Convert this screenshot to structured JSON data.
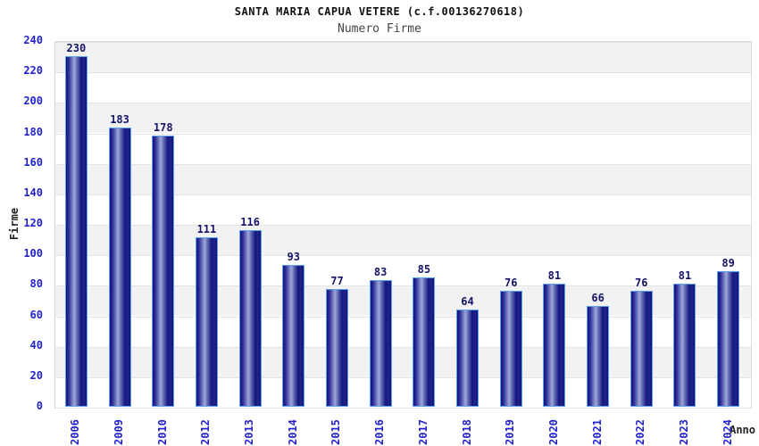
{
  "chart_data": {
    "type": "bar",
    "title": "SANTA MARIA CAPUA VETERE (c.f.00136270618)",
    "subtitle": "Numero Firme",
    "xlabel": "Anno",
    "ylabel": "Firme",
    "categories": [
      "2006",
      "2009",
      "2010",
      "2012",
      "2013",
      "2014",
      "2015",
      "2016",
      "2017",
      "2018",
      "2019",
      "2020",
      "2021",
      "2022",
      "2023",
      "2024"
    ],
    "values": [
      230,
      183,
      178,
      111,
      116,
      93,
      77,
      83,
      85,
      64,
      76,
      81,
      66,
      76,
      81,
      89
    ],
    "ylim": [
      0,
      240
    ],
    "ytick_step": 20,
    "yticks": [
      0,
      20,
      40,
      60,
      80,
      100,
      120,
      140,
      160,
      180,
      200,
      220,
      240
    ],
    "grid": true,
    "legend": "none",
    "colors": {
      "bar_dark": "#14147d",
      "bar_mid": "#2b2b99",
      "bar_light": "#9fa7d8",
      "bar_border": "#5ba3e8",
      "tick_label": "#2222cc",
      "value_label": "#14146a",
      "band": "#f2f2f2",
      "gridline": "#e3e3e3",
      "axis": "#b5b5b5",
      "title": "#111111",
      "subtitle": "#444444",
      "axis_title": "#222222"
    }
  }
}
